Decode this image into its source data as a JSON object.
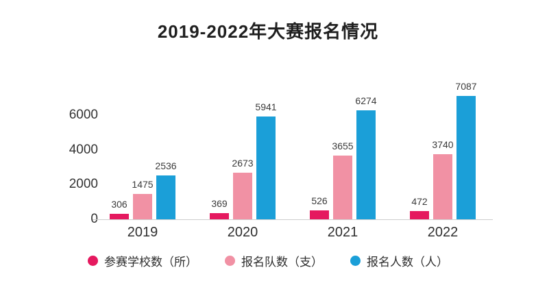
{
  "chart_data": {
    "type": "bar",
    "title": "2019-2022年大赛报名情况",
    "categories": [
      "2019",
      "2020",
      "2021",
      "2022"
    ],
    "series": [
      {
        "name": "参赛学校数（所）",
        "color": "#e5195f",
        "values": [
          306,
          369,
          526,
          472
        ]
      },
      {
        "name": "报名队数（支）",
        "color": "#f191a4",
        "values": [
          1475,
          2673,
          3655,
          3740
        ]
      },
      {
        "name": "报名人数（人）",
        "color": "#1b9fd8",
        "values": [
          2536,
          5941,
          6274,
          7087
        ]
      }
    ],
    "xlabel": "",
    "ylabel": "",
    "yticks": [
      0,
      2000,
      4000,
      6000
    ],
    "ylim": [
      0,
      7500
    ],
    "grid": false,
    "legend_position": "bottom"
  }
}
